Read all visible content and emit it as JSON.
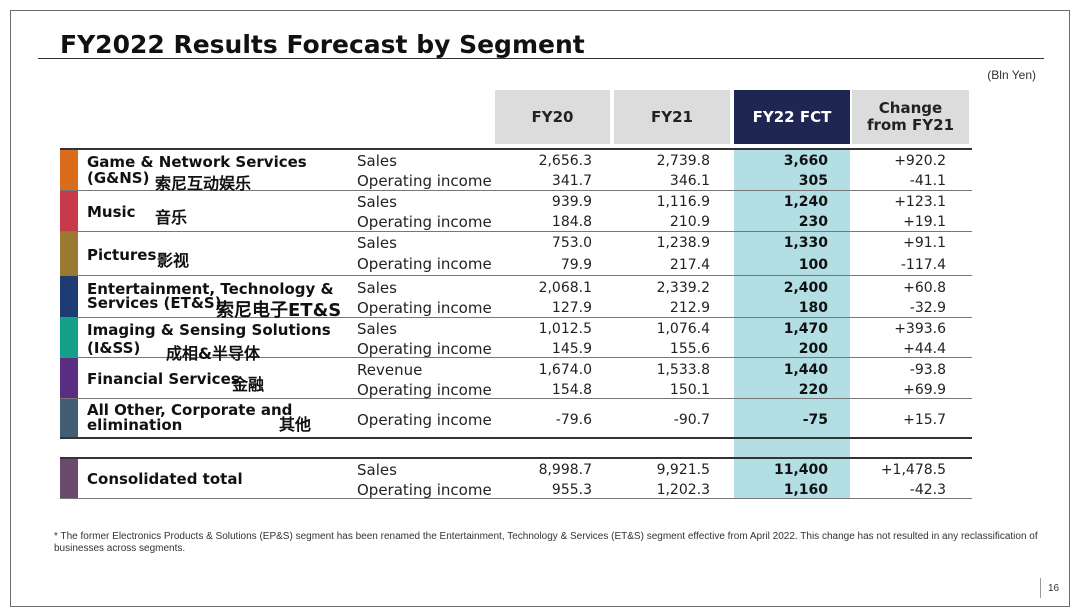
{
  "title": "FY2022 Results Forecast by Segment",
  "unit": "(Bln Yen)",
  "headers": {
    "fy20": "FY20",
    "fy21": "FY21",
    "fy22": "FY22 FCT",
    "change": "Change from FY21"
  },
  "colors": {
    "header_bg": "#dcdcdc",
    "fct_header_bg": "#1f2652",
    "fct_column_bg": "#b3dfe4",
    "gns": "#d96d1b",
    "music": "#c83a4a",
    "pictures": "#9a7a33",
    "ets": "#1e3b73",
    "iss": "#139f88",
    "financial": "#5b2d82",
    "other": "#435e73",
    "consolidated": "#6b4a6e"
  },
  "segments": [
    {
      "line1": "Game & Network Services",
      "line2": "(G&NS)",
      "cn": "索尼互动娱乐",
      "rows": [
        {
          "metric": "Sales",
          "fy20": "2,656.3",
          "fy21": "2,739.8",
          "fy22": "3,660",
          "change": "+920.2"
        },
        {
          "metric": "Operating income",
          "fy20": "341.7",
          "fy21": "346.1",
          "fy22": "305",
          "change": "-41.1"
        }
      ]
    },
    {
      "line1": "Music",
      "line2": "",
      "cn": "音乐",
      "rows": [
        {
          "metric": "Sales",
          "fy20": "939.9",
          "fy21": "1,116.9",
          "fy22": "1,240",
          "change": "+123.1"
        },
        {
          "metric": "Operating income",
          "fy20": "184.8",
          "fy21": "210.9",
          "fy22": "230",
          "change": "+19.1"
        }
      ]
    },
    {
      "line1": "Pictures",
      "line2": "",
      "cn": "影视",
      "rows": [
        {
          "metric": "Sales",
          "fy20": "753.0",
          "fy21": "1,238.9",
          "fy22": "1,330",
          "change": "+91.1"
        },
        {
          "metric": "Operating income",
          "fy20": "79.9",
          "fy21": "217.4",
          "fy22": "100",
          "change": "-117.4"
        }
      ]
    },
    {
      "line1": "Entertainment, Technology &",
      "line2": "Services (ET&S)",
      "cn": "索尼电子ET&S",
      "rows": [
        {
          "metric": "Sales",
          "fy20": "2,068.1",
          "fy21": "2,339.2",
          "fy22": "2,400",
          "change": "+60.8"
        },
        {
          "metric": "Operating income",
          "fy20": "127.9",
          "fy21": "212.9",
          "fy22": "180",
          "change": "-32.9"
        }
      ]
    },
    {
      "line1": "Imaging & Sensing Solutions",
      "line2": "(I&SS)",
      "cn": "成相&半导体",
      "rows": [
        {
          "metric": "Sales",
          "fy20": "1,012.5",
          "fy21": "1,076.4",
          "fy22": "1,470",
          "change": "+393.6"
        },
        {
          "metric": "Operating income",
          "fy20": "145.9",
          "fy21": "155.6",
          "fy22": "200",
          "change": "+44.4"
        }
      ]
    },
    {
      "line1": "Financial Services",
      "line2": "",
      "cn": "金融",
      "rows": [
        {
          "metric": "Revenue",
          "fy20": "1,674.0",
          "fy21": "1,533.8",
          "fy22": "1,440",
          "change": "-93.8"
        },
        {
          "metric": "Operating income",
          "fy20": "154.8",
          "fy21": "150.1",
          "fy22": "220",
          "change": "+69.9"
        }
      ]
    },
    {
      "line1": "All Other, Corporate and",
      "line2": "elimination",
      "cn": "其他",
      "rows": [
        {
          "metric": "Operating income",
          "fy20": "-79.6",
          "fy21": "-90.7",
          "fy22": "-75",
          "change": "+15.7"
        }
      ]
    }
  ],
  "consolidated": {
    "label": "Consolidated total",
    "rows": [
      {
        "metric": "Sales",
        "fy20": "8,998.7",
        "fy21": "9,921.5",
        "fy22": "11,400",
        "change": "+1,478.5"
      },
      {
        "metric": "Operating income",
        "fy20": "955.3",
        "fy21": "1,202.3",
        "fy22": "1,160",
        "change": "-42.3"
      }
    ]
  },
  "footnote": "* The former Electronics Products & Solutions (EP&S) segment has been renamed the Entertainment, Technology & Services (ET&S) segment effective from April 2022. This change has not resulted in any reclassification of businesses across segments.",
  "page_number": "16"
}
